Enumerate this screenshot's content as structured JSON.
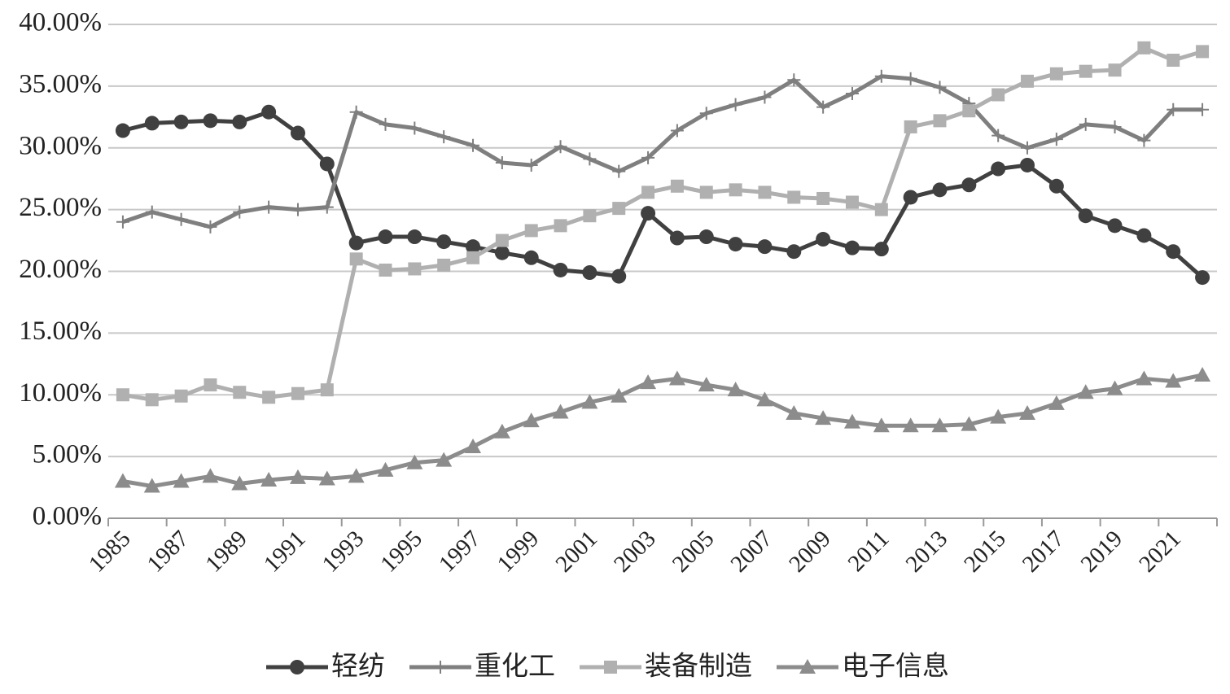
{
  "chart_data": {
    "type": "line",
    "categories": [
      "1985",
      null,
      "1987",
      null,
      "1989",
      null,
      "1991",
      null,
      "1993",
      null,
      "1995",
      null,
      "1997",
      null,
      "1999",
      null,
      "2001",
      null,
      "2003",
      null,
      "2005",
      null,
      "2007",
      null,
      "2009",
      null,
      "2011",
      null,
      "2013",
      null,
      "2015",
      null,
      "2017",
      null,
      "2019",
      null,
      "2021",
      null
    ],
    "series": [
      {
        "name": "轻纺",
        "color": "#404040",
        "marker": "circle",
        "values": [
          31.4,
          32.0,
          32.1,
          32.2,
          32.1,
          32.9,
          31.2,
          28.7,
          22.3,
          22.8,
          22.8,
          22.4,
          22.0,
          21.5,
          21.1,
          20.1,
          19.9,
          19.6,
          24.7,
          22.7,
          22.8,
          22.2,
          22.0,
          21.6,
          22.6,
          21.9,
          21.8,
          26.0,
          26.6,
          27.0,
          28.3,
          28.6,
          26.9,
          24.5,
          23.7,
          22.9,
          21.6,
          19.5
        ]
      },
      {
        "name": "重化工",
        "color": "#7f7f7f",
        "marker": "plus",
        "values": [
          24.0,
          24.8,
          24.2,
          23.6,
          24.8,
          25.2,
          25.0,
          25.2,
          32.9,
          31.9,
          31.6,
          30.9,
          30.2,
          28.8,
          28.6,
          30.1,
          29.1,
          28.1,
          29.2,
          31.4,
          32.8,
          33.5,
          34.1,
          35.5,
          33.3,
          34.4,
          35.8,
          35.6,
          34.9,
          33.6,
          31.0,
          30.0,
          30.7,
          31.9,
          31.7,
          30.6,
          33.1,
          33.1
        ]
      },
      {
        "name": "装备制造",
        "color": "#b0b0b0",
        "marker": "square",
        "values": [
          10.0,
          9.6,
          9.9,
          10.8,
          10.2,
          9.8,
          10.1,
          10.4,
          21.0,
          20.1,
          20.2,
          20.5,
          21.1,
          22.5,
          23.3,
          23.7,
          24.5,
          25.1,
          26.4,
          26.9,
          26.4,
          26.6,
          26.4,
          26.0,
          25.9,
          25.6,
          25.0,
          31.7,
          32.2,
          33.0,
          34.3,
          35.4,
          36.0,
          36.2,
          36.3,
          38.1,
          37.1,
          37.8
        ]
      },
      {
        "name": "电子信息",
        "color": "#8c8c8c",
        "marker": "triangle",
        "values": [
          3.0,
          2.6,
          3.0,
          3.4,
          2.8,
          3.1,
          3.3,
          3.2,
          3.4,
          3.9,
          4.5,
          4.7,
          5.8,
          7.0,
          7.9,
          8.6,
          9.4,
          9.9,
          11.0,
          11.3,
          10.8,
          10.4,
          9.6,
          8.5,
          8.1,
          7.8,
          7.5,
          7.5,
          7.5,
          7.6,
          8.2,
          8.5,
          9.3,
          10.2,
          10.5,
          11.3,
          11.1,
          11.6
        ]
      }
    ],
    "ylim": [
      0,
      40
    ],
    "yticks": [
      {
        "value": 0,
        "label": "0.00%"
      },
      {
        "value": 5,
        "label": "5.00%"
      },
      {
        "value": 10,
        "label": "10.00%"
      },
      {
        "value": 15,
        "label": "15.00%"
      },
      {
        "value": 20,
        "label": "20.00%"
      },
      {
        "value": 25,
        "label": "25.00%"
      },
      {
        "value": 30,
        "label": "30.00%"
      },
      {
        "value": 35,
        "label": "35.00%"
      },
      {
        "value": 40,
        "label": "40.00%"
      }
    ],
    "grid": true,
    "legend": "bottom"
  }
}
